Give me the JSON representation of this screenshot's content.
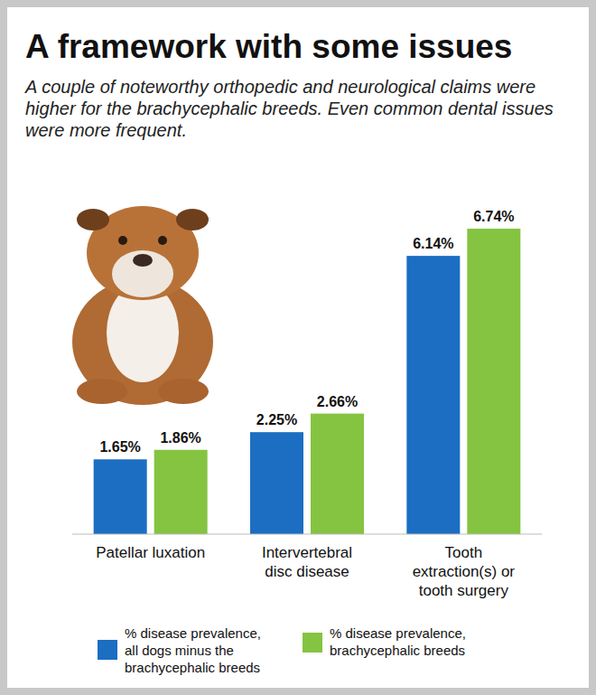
{
  "chart_data": {
    "type": "bar",
    "title": "A framework with some issues",
    "subtitle": "A couple of noteworthy orthopedic and neurological claims were higher for the brachycephalic breeds. Even common dental issues were more frequent.",
    "categories": [
      "Patellar luxation",
      "Intervertebral disc disease",
      "Tooth extraction(s) or tooth surgery"
    ],
    "series": [
      {
        "name": "% disease prevalence, all dogs minus the brachycephalic breeds",
        "color": "#1b6ec2",
        "values": [
          1.65,
          2.25,
          6.14
        ],
        "value_labels": [
          "1.65%",
          "2.25%",
          "6.14%"
        ]
      },
      {
        "name": "% disease prevalence, brachycephalic breeds",
        "color": "#84c441",
        "values": [
          1.86,
          2.66,
          6.74
        ],
        "value_labels": [
          "1.86%",
          "2.66%",
          "6.74%"
        ]
      }
    ],
    "ylim": [
      0,
      7
    ],
    "data_labels": true,
    "tick_labels": "x",
    "legend": "bottom",
    "grid": false
  }
}
